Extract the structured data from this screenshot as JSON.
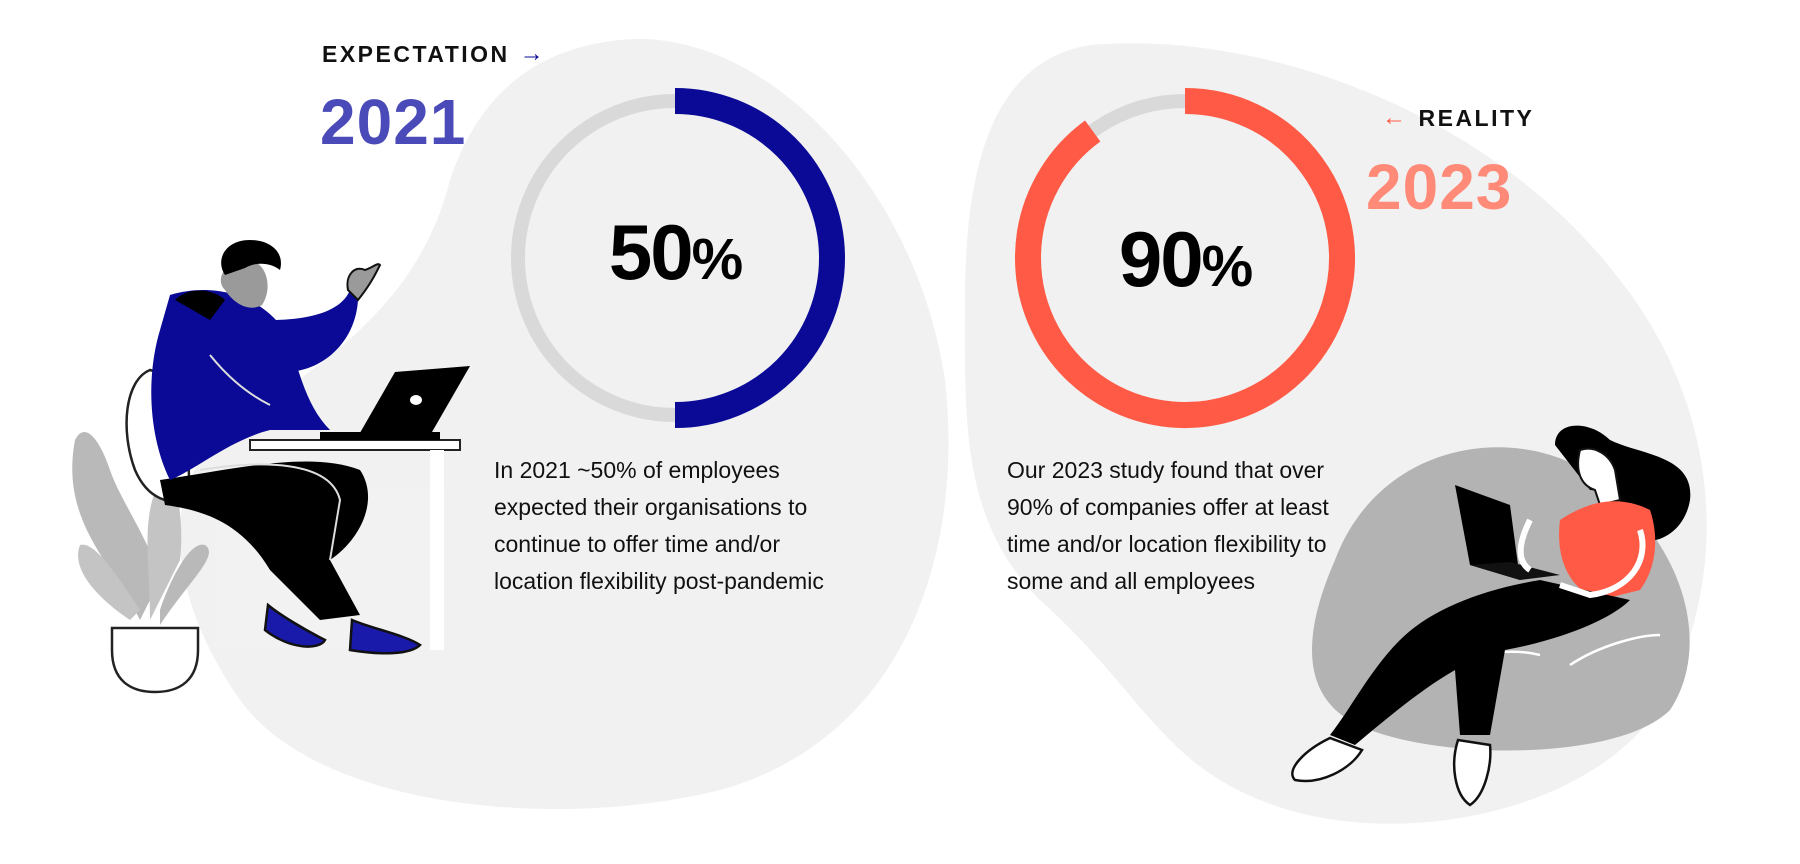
{
  "expectation": {
    "label": "EXPECTATION",
    "arrow": "→",
    "year": "2021",
    "value_text": "50",
    "percent_sign": "%",
    "description": "In 2021 ~50% of employees expected their organisations to continue to offer time and/or location flexibility post-pandemic"
  },
  "reality": {
    "label": "REALITY",
    "arrow": "←",
    "year": "2023",
    "value_text": "90",
    "percent_sign": "%",
    "description": "Our 2023 study found that over 90% of companies offer at least time and/or location flexibility to some and all employees"
  },
  "colors": {
    "navy": "#0a0a96",
    "indigo_year": "#4a4ab8",
    "coral": "#ff5a45",
    "coral_year": "#ff8a78",
    "track": "#d9d9d9",
    "blob": "#f1f1f1",
    "gray_beanbag": "#b3b3b3"
  },
  "icons": [
    "person-at-desk-illustration",
    "plant-illustration",
    "woman-on-beanbag-illustration",
    "laptop-icon"
  ],
  "chart_data": [
    {
      "type": "pie",
      "variant": "donut",
      "categories": [
        "2021"
      ],
      "values": [
        50
      ]
    },
    {
      "type": "pie",
      "variant": "donut",
      "categories": [
        "2023"
      ],
      "values": [
        90
      ]
    }
  ]
}
